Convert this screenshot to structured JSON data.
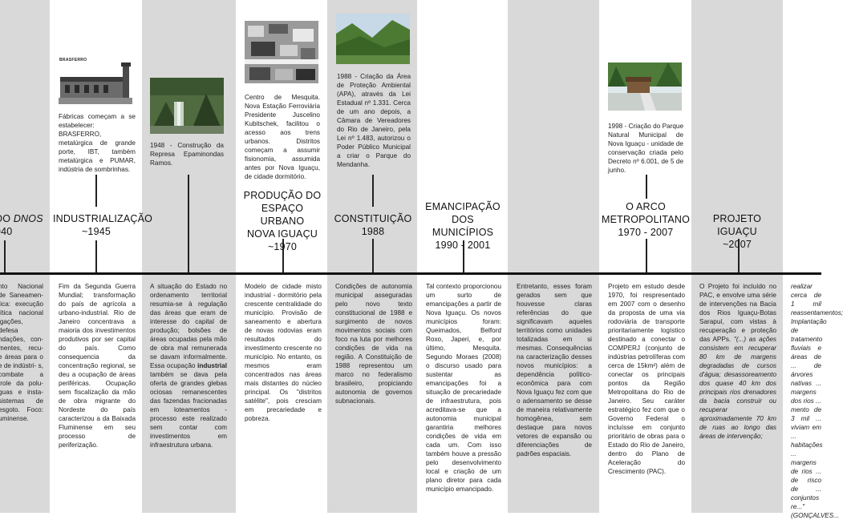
{
  "events": [
    {
      "id": "dnos",
      "title_line1": "DO DNOS",
      "title_line2": "940",
      "body": "nto Nacional de Saneamen- tica: execução lítica nacional igações, defesa ndações, con- mentes, recu- e áreas para o e de indústri- s, combate a trole da polu- guas e insta- sistemas de esgoto. Foco: uminense."
    },
    {
      "id": "industrializacao",
      "title_line1": "INDUSTRIALIZAÇÃO",
      "title_line2": "~1945",
      "caption": "Fábricas começam a se estabelecer: BRASFERRO, metalúrgica de grande porte, IBT, também metalúrgica e PUMAR, indústria de sombrinhas.",
      "photo_label": "BRASFERRO",
      "body": "Fim da Segunda Guerra Mundial; transformação do país de agrícola a urbano-industrial. Rio de Janeiro concentrava a maioria dos investimentos produtivos por ser capital do país. Como consequencia da concentração regional, se deu a ocupação de áreas periféricas. Ocupação sem fiscalização da mão de obra migrante do Nordeste do país caracterizou a da Baixada Fluminense em seu processo de periferização."
    },
    {
      "id": "represa",
      "caption": "1948 - Construção da Represa Epaminondas Ramos.",
      "body_pre": "A situação do Estado no ordenamento territorial resumia-se à regulação das áreas que eram de interesse do capital de produção; bolsões de áreas ocupadas pela mão de obra mal remunerada se davam informalmente. Essa ocupação ",
      "body_bold": "industrial",
      "body_post": " também se dava pela oferta de grandes glebas ociosas remanescentes das fazendas fracionadas em loteamentos - processo este realizado sem contar com investimentos em infraestrutura urbana."
    },
    {
      "id": "espaco-urbano",
      "title_line1": "PRODUÇÃO DO",
      "title_line2": "ESPAÇO URBANO",
      "title_line3": "NOVA IGUAÇU",
      "title_line4": "~1970",
      "caption": "Centro de Mesquita. Nova Estação Ferroviária Presidente Juscelino Kubitschek, facilitou o acesso aos trens urbanos. Distritos começam a assumir fisionomia, assumida antes por Nova Iguaçu, de cidade dormitório.",
      "body": "Modelo de cidade misto industrial - dormitório pela crescente centralidade do município. Provisão de saneamento e abertura de novas rodovias eram resultados do investimento crescente no município. No entanto, os mesmos eram concentrados nas áreas mais distantes do núcleo principal. Os \"distritos satélite\", pois cresciam em precariedade e pobreza."
    },
    {
      "id": "constituicao",
      "title_line1": "CONSTITUIÇÃO",
      "title_line2": "1988",
      "caption": "1988 - Criação da Área de Proteção Ambiental (APA), através da Lei Estadual nº 1.331. Cerca de um ano depois, a Câmara de Vereadores do Rio de Janeiro, pela Lei nº 1.483, autorizou o Poder Público Municipal a criar o Parque do Mendanha.",
      "body": "Condições de autonomia municipal asseguradas pelo novo texto constitucional de 1988 e surgimento de novos movimentos sociais com foco na luta por melhores condições de vida na região. A Constituição de 1988 representou um marco no federalismo brasileiro, propiciando autonomia de governos subnacionais."
    },
    {
      "id": "emancipacao",
      "title_line1": "EMANCIPAÇÃO DOS",
      "title_line2": "MUNICÍPIOS",
      "title_line3": "1990 - 2001",
      "body": "Tal contexto proporcionou um surto de emancipações a partir de Nova Iguaçu. Os novos municípios foram: Queimados, Belford Roxo, Japeri, e, por último, Mesquita. Segundo Moraes (2008) o discurso usado para sustentar as emancipações foi a situação de precariedade de infraestrutura, pois acreditava-se que a autonomia municipal garantiria melhores condições de vida em cada um. Com isso também houve a pressão pelo desenvolvimento local e criação de um plano diretor para cada município emancipado."
    },
    {
      "id": "entretanto",
      "body": "Entretanto, esses foram gerados sem que houvesse claras referências do que significavam aqueles territórios como unidades totalizadas em si mesmas. Consequências na caracterização desses novos municípios: a dependência político-econômica para com Nova Iguaçu fez com que o adensamento se desse de maneira relativamente homogênea, sem destaque para novos vetores de expansão ou diferenciações de padrões espaciais."
    },
    {
      "id": "arco",
      "title_line1": "O ARCO",
      "title_line2": "METROPOLITANO",
      "title_line3": "1970 - 2007",
      "caption": "1998 - Criação do Parque Natural Municipal de Nova Iguaçu - unidade de conservação criada pelo Decreto nº 6.001, de 5 de junho.",
      "body": "Projeto em estudo desde 1970, foi respresentado em 2007 com o desenho da proposta de uma via rodoviária de transporte prioritariamente logístico destinado a conectar o COMPERJ (conjunto de indústrias petrolíferas com cerca de 15km²) além de conectar os principais pontos da Região Metropolitana do Rio de Janeiro. Seu caráter estratégico fez com que o Governo Federal o incluísse em conjunto prioritário de obras para o Estado do Rio de Janeiro, dentro do Plano de Aceleração do Crescimento (PAC)."
    },
    {
      "id": "projeto-iguacu",
      "title_line1": "PROJETO IGUAÇU",
      "title_line2": "~2007",
      "body_pre": "O Projeto foi incluído no PAC, e envolve uma série de intervenções na Bacia dos Rios Iguaçu-Botas Sarapuí, com vistas à recuperação e proteção das APPs. ",
      "body_italic": "\"(...) as ações consistem em recuperar 80 km de margens degradadas de cursos d'água; desassoreamento dos quase 40 km dos principais rios drenadores da bacia construir ou recuperar aproximadamente 70 km de ruas ao longo das áreas de intervenção;"
    },
    {
      "id": "final",
      "body": "realizar cerca de 1 mil reassentamentos; Implantação de tratamento fluviais e áreas de ... de árvores nativas ... margens dos rios ... mento de 3 mil ... viviam em ... habitações ... margens de rios ... de risco de ... conjuntos re...\" (GONÇALVES..."
    }
  ]
}
